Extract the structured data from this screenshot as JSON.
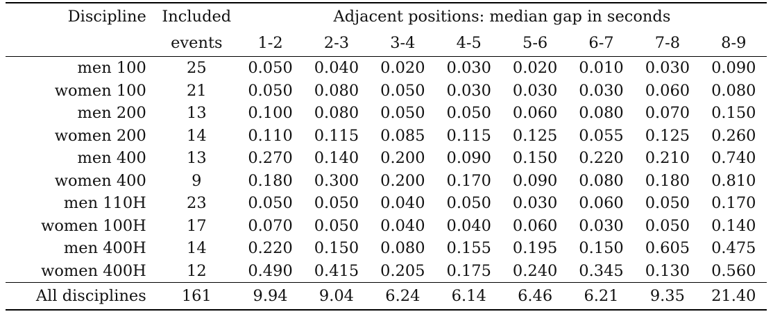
{
  "table": {
    "headers": {
      "discipline": "Discipline",
      "included_top": "Included",
      "included_bottom": "events",
      "span_title": "Adjacent positions: median gap in seconds",
      "gaps": [
        "1-2",
        "2-3",
        "3-4",
        "4-5",
        "5-6",
        "6-7",
        "7-8",
        "8-9"
      ]
    },
    "rows": [
      {
        "discipline": "men 100",
        "events": "25",
        "values": [
          "0.050",
          "0.040",
          "0.020",
          "0.030",
          "0.020",
          "0.010",
          "0.030",
          "0.090"
        ]
      },
      {
        "discipline": "women 100",
        "events": "21",
        "values": [
          "0.050",
          "0.080",
          "0.050",
          "0.030",
          "0.030",
          "0.030",
          "0.060",
          "0.080"
        ]
      },
      {
        "discipline": "men 200",
        "events": "13",
        "values": [
          "0.100",
          "0.080",
          "0.050",
          "0.050",
          "0.060",
          "0.080",
          "0.070",
          "0.150"
        ]
      },
      {
        "discipline": "women 200",
        "events": "14",
        "values": [
          "0.110",
          "0.115",
          "0.085",
          "0.115",
          "0.125",
          "0.055",
          "0.125",
          "0.260"
        ]
      },
      {
        "discipline": "men 400",
        "events": "13",
        "values": [
          "0.270",
          "0.140",
          "0.200",
          "0.090",
          "0.150",
          "0.220",
          "0.210",
          "0.740"
        ]
      },
      {
        "discipline": "women 400",
        "events": "9",
        "values": [
          "0.180",
          "0.300",
          "0.200",
          "0.170",
          "0.090",
          "0.080",
          "0.180",
          "0.810"
        ]
      },
      {
        "discipline": "men 110H",
        "events": "23",
        "values": [
          "0.050",
          "0.050",
          "0.040",
          "0.050",
          "0.030",
          "0.060",
          "0.050",
          "0.170"
        ]
      },
      {
        "discipline": "women 100H",
        "events": "17",
        "values": [
          "0.070",
          "0.050",
          "0.040",
          "0.040",
          "0.060",
          "0.030",
          "0.050",
          "0.140"
        ]
      },
      {
        "discipline": "men 400H",
        "events": "14",
        "values": [
          "0.220",
          "0.150",
          "0.080",
          "0.155",
          "0.195",
          "0.150",
          "0.605",
          "0.475"
        ]
      },
      {
        "discipline": "women 400H",
        "events": "12",
        "values": [
          "0.490",
          "0.415",
          "0.205",
          "0.175",
          "0.240",
          "0.345",
          "0.130",
          "0.560"
        ]
      }
    ],
    "total": {
      "discipline": "All disciplines",
      "events": "161",
      "values": [
        "9.94",
        "9.04",
        "6.24",
        "6.14",
        "6.46",
        "6.21",
        "9.35",
        "21.40"
      ]
    }
  }
}
